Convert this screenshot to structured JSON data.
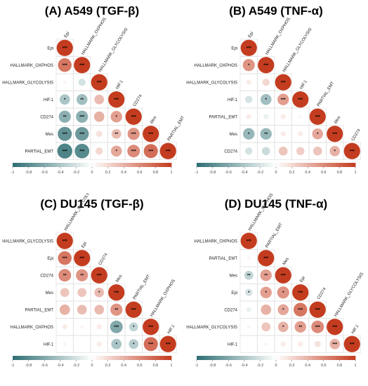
{
  "scale": {
    "labels": [
      "-1",
      "-0.8",
      "-0.6",
      "-0.4",
      "-0.2",
      "0",
      "0.2",
      "0.4",
      "0.6",
      "0.8",
      "1"
    ]
  },
  "colors": {
    "negative": "#2e6e72",
    "positive": "#c43c1f",
    "neutral": "#ffffff",
    "grid": "#dddddd"
  },
  "chart_data": [
    {
      "type": "heatmap",
      "title": "(A) A549 (TGF-β)",
      "variables": [
        "Epi",
        "HALLMARK_OXPHOS",
        "HALLMARK_GLYCOLYSIS",
        "HIF.1",
        "CD274",
        "Mes",
        "PARTIAL_EMT"
      ],
      "values": [
        [
          1
        ],
        [
          0.7,
          1
        ],
        [
          0.05,
          -0.2,
          1
        ],
        [
          -0.4,
          -0.45,
          0.35,
          1
        ],
        [
          -0.55,
          -0.55,
          0.4,
          0.5,
          1
        ],
        [
          -0.75,
          -0.7,
          0.15,
          0.35,
          0.55,
          1
        ],
        [
          -0.85,
          -0.8,
          0.2,
          0.45,
          0.6,
          0.75,
          1
        ]
      ],
      "stars": [
        [
          "***"
        ],
        [
          "***",
          "***"
        ],
        [
          "",
          "",
          "***"
        ],
        [
          "*",
          "**",
          "",
          "***"
        ],
        [
          "**",
          "***",
          "",
          "*",
          "***"
        ],
        [
          "***",
          "***",
          "",
          "**",
          "***",
          "***"
        ],
        [
          "***",
          "***",
          "",
          "*",
          "***",
          "***",
          "***"
        ]
      ]
    },
    {
      "type": "heatmap",
      "title": "(B) A549 (TNF-α)",
      "variables": [
        "Epi",
        "HALLMARK_OXPHOS",
        "HALLMARK_GLYCOLYSIS",
        "HIF.1",
        "PARTIAL_EMT",
        "Mes",
        "CD274"
      ],
      "values": [
        [
          1
        ],
        [
          0.55,
          1
        ],
        [
          0.1,
          0.2,
          1
        ],
        [
          -0.2,
          -0.45,
          0.5,
          1
        ],
        [
          0.1,
          -0.1,
          0.1,
          0.05,
          1
        ],
        [
          -0.5,
          -0.5,
          0.1,
          0.1,
          0.45,
          1
        ],
        [
          -0.2,
          -0.25,
          0.3,
          0.25,
          0.3,
          0.4,
          1
        ]
      ],
      "stars": [
        [
          "***"
        ],
        [
          "*",
          "***"
        ],
        [
          "",
          "",
          "***"
        ],
        [
          "",
          "*",
          "***",
          "***"
        ],
        [
          "",
          "",
          "",
          "",
          "***"
        ],
        [
          "*",
          "**",
          "",
          "",
          "*",
          "***"
        ],
        [
          "",
          "",
          "",
          "",
          "",
          "*",
          "***"
        ]
      ]
    },
    {
      "type": "heatmap",
      "title": "(C) DU145 (TGF-β)",
      "variables": [
        "HALLMARK_GLYCOLYSIS",
        "Epi",
        "CD274",
        "Mes",
        "PARTIAL_EMT",
        "HALLMARK_OXPHOS",
        "HIF.1"
      ],
      "values": [
        [
          1
        ],
        [
          0.7,
          1
        ],
        [
          0.6,
          0.55,
          1
        ],
        [
          0.3,
          0.3,
          0.35,
          1
        ],
        [
          0.4,
          0.35,
          0.35,
          0.55,
          1
        ],
        [
          0.1,
          0.05,
          0.1,
          -0.6,
          -0.3,
          1
        ],
        [
          0.05,
          0.0,
          0.1,
          -0.4,
          -0.35,
          0.75,
          1
        ]
      ],
      "stars": [
        [
          "***"
        ],
        [
          "***",
          "***"
        ],
        [
          "**",
          "**",
          "***"
        ],
        [
          "",
          "",
          "*",
          "***"
        ],
        [
          "",
          "",
          "",
          "**",
          "***"
        ],
        [
          "",
          "",
          "",
          "***",
          "*",
          "***"
        ],
        [
          "",
          "",
          "",
          "*",
          "*",
          "***",
          "***"
        ]
      ]
    },
    {
      "type": "heatmap",
      "title": "(D) DU145 (TNF-α)",
      "variables": [
        "HALLMARK_OXPHOS",
        "PARTIAL_EMT",
        "Mes",
        "Epi",
        "CD274",
        "HALLMARK_GLYCOLYSIS",
        "HIF.1"
      ],
      "values": [
        [
          1
        ],
        [
          0.05,
          1
        ],
        [
          -0.3,
          0.5,
          1
        ],
        [
          -0.2,
          0.5,
          0.55,
          1
        ],
        [
          -0.1,
          0.4,
          0.45,
          0.7,
          1
        ],
        [
          0.05,
          0.3,
          0.4,
          0.5,
          0.6,
          1
        ],
        [
          0.0,
          0.05,
          0.1,
          0.1,
          0.15,
          0.4,
          1
        ]
      ],
      "stars": [
        [
          "***"
        ],
        [
          "",
          "***"
        ],
        [
          "**",
          "**",
          "***"
        ],
        [
          "*",
          "*",
          "*",
          "***"
        ],
        [
          "",
          "",
          "*",
          "***",
          "***"
        ],
        [
          "",
          "",
          "*",
          "**",
          "***",
          "***"
        ],
        [
          "",
          "",
          "",
          "",
          "",
          "***",
          "***"
        ]
      ]
    }
  ]
}
